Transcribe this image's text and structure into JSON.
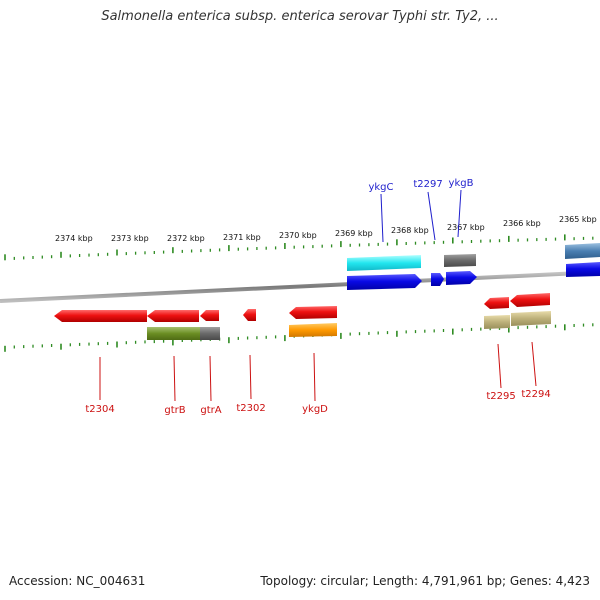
{
  "title": "Salmonella enterica subsp. enterica serovar Typhi str. Ty2, ...",
  "footer": {
    "accession": "Accession: NC_004631",
    "stats": "Topology: circular; Length: 4,791,961 bp; Genes: 4,423"
  },
  "scale": {
    "tick_labels": [
      "2374 kbp",
      "2373 kbp",
      "2372 kbp",
      "2371 kbp",
      "2370 kbp",
      "2369 kbp",
      "2368 kbp",
      "2367 kbp",
      "2366 kbp",
      "2365 kbp"
    ],
    "tick_color": "#2e8b22"
  },
  "colors": {
    "backbone": "#808080",
    "forward_label": "#1f1fcc",
    "reverse_label": "#cc1111"
  },
  "gene_labels": {
    "forward": [
      "ykgC",
      "t2297",
      "ykgB"
    ],
    "reverse": [
      "t2304",
      "gtrB",
      "gtrA",
      "t2302",
      "ykgD",
      "t2295",
      "t2294"
    ]
  }
}
